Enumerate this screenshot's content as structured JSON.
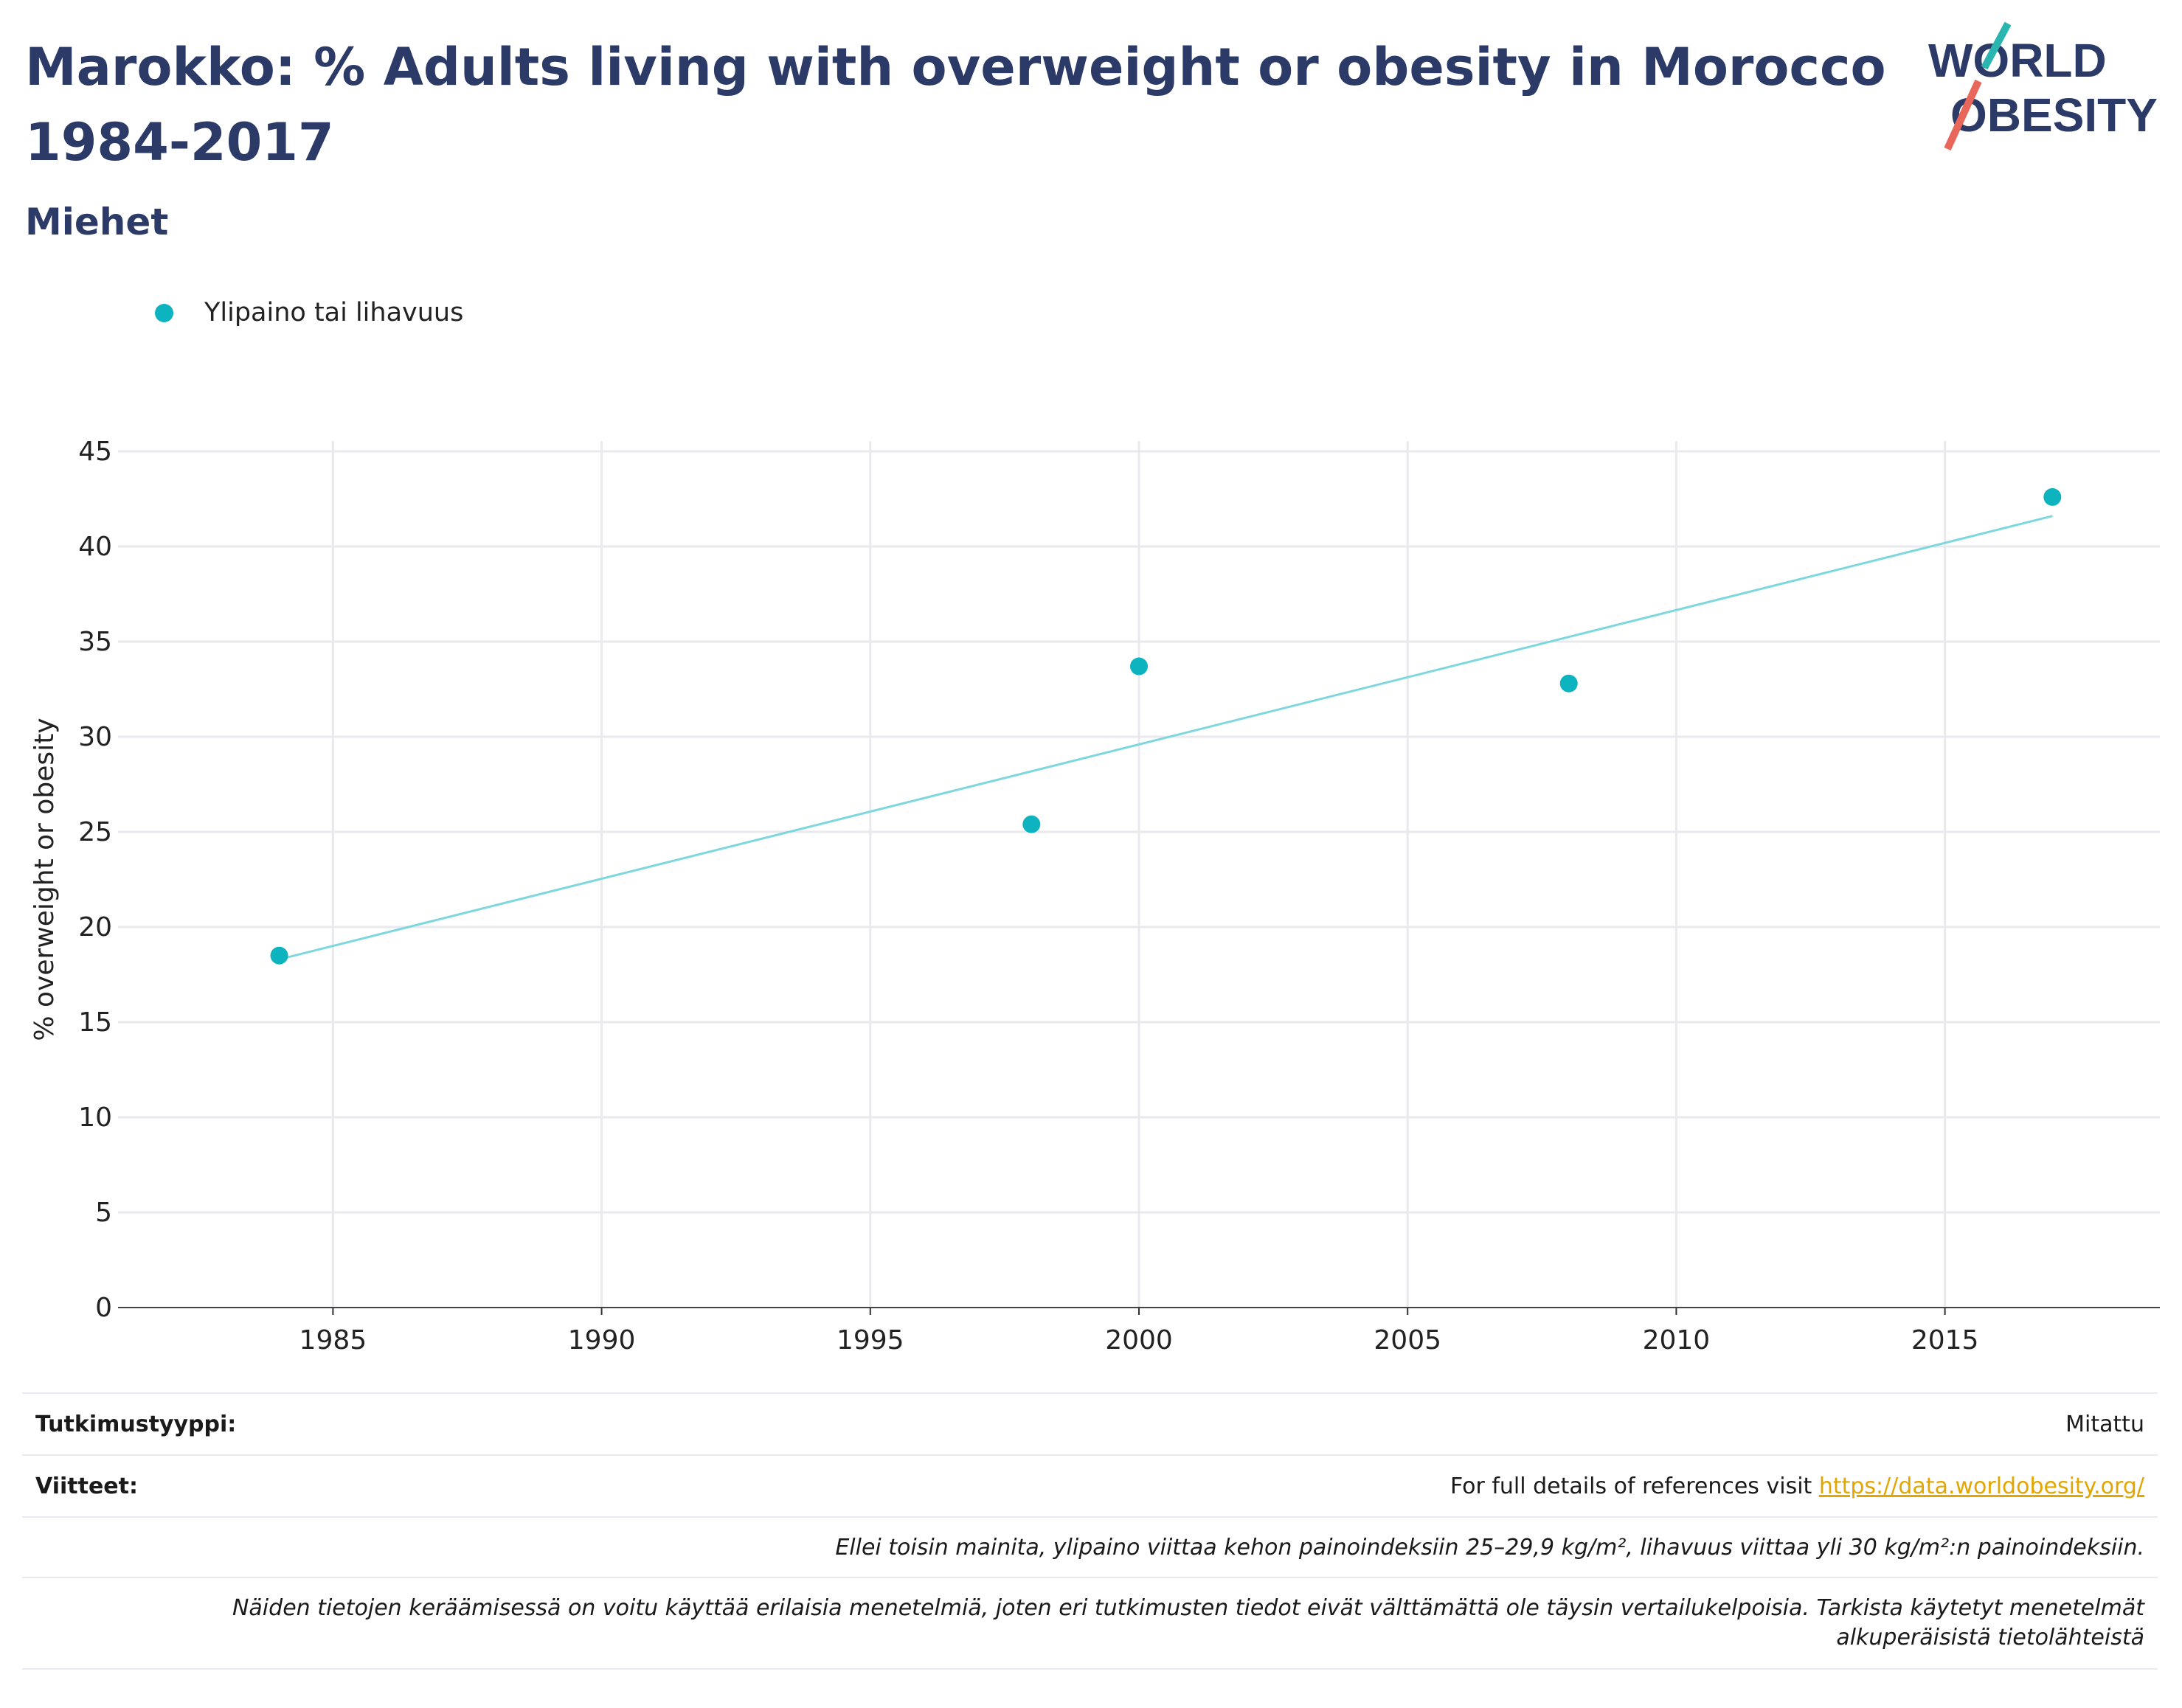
{
  "header": {
    "title": "Marokko: % Adults living with overweight or obesity in Morocco 1984-2017",
    "subtitle": "Miehet"
  },
  "logo": {
    "line1": "WORLD",
    "line2": "OBESITY"
  },
  "colors": {
    "title": "#2b3a67",
    "series": "#0db3be",
    "trend": "#7dd8dd",
    "link": "#e3a600",
    "logo_slash_top": "#2bb5b0",
    "logo_slash_bottom": "#e8675a"
  },
  "chart_data": {
    "type": "scatter",
    "ylabel": "% overweight or obesity",
    "xlim": [
      1981,
      2019
    ],
    "ylim": [
      0,
      45
    ],
    "x_ticks": [
      "1985",
      "1990",
      "1995",
      "2000",
      "2005",
      "2010",
      "2015"
    ],
    "y_ticks": [
      "0",
      "5",
      "10",
      "15",
      "20",
      "25",
      "30",
      "35",
      "40",
      "45"
    ],
    "grid": true,
    "legend_position": "top-left",
    "series": [
      {
        "name": "Ylipaino tai lihavuus",
        "x": [
          1984,
          1998,
          2000,
          2008,
          2017
        ],
        "y": [
          18.5,
          25.4,
          33.7,
          32.8,
          42.6
        ]
      }
    ],
    "trendline": {
      "x": [
        1984,
        2017
      ],
      "y": [
        18.3,
        41.6
      ]
    }
  },
  "info": {
    "study_type_label": "Tutkimustyyppi:",
    "study_type_value": "Mitattu",
    "references_label": "Viitteet:",
    "references_text": "For full details of references visit ",
    "references_link": "https://data.worldobesity.org/",
    "note1": "Ellei toisin mainita, ylipaino viittaa kehon painoindeksiin 25–29,9 kg/m², lihavuus viittaa yli 30 kg/m²:n painoindeksiin.",
    "note2": "Näiden tietojen keräämisessä on voitu käyttää erilaisia menetelmiä, joten eri tutkimusten tiedot eivät välttämättä ole täysin vertailukelpoisia. Tarkista käytetyt menetelmät alkuperäisistä tietolähteistä"
  }
}
